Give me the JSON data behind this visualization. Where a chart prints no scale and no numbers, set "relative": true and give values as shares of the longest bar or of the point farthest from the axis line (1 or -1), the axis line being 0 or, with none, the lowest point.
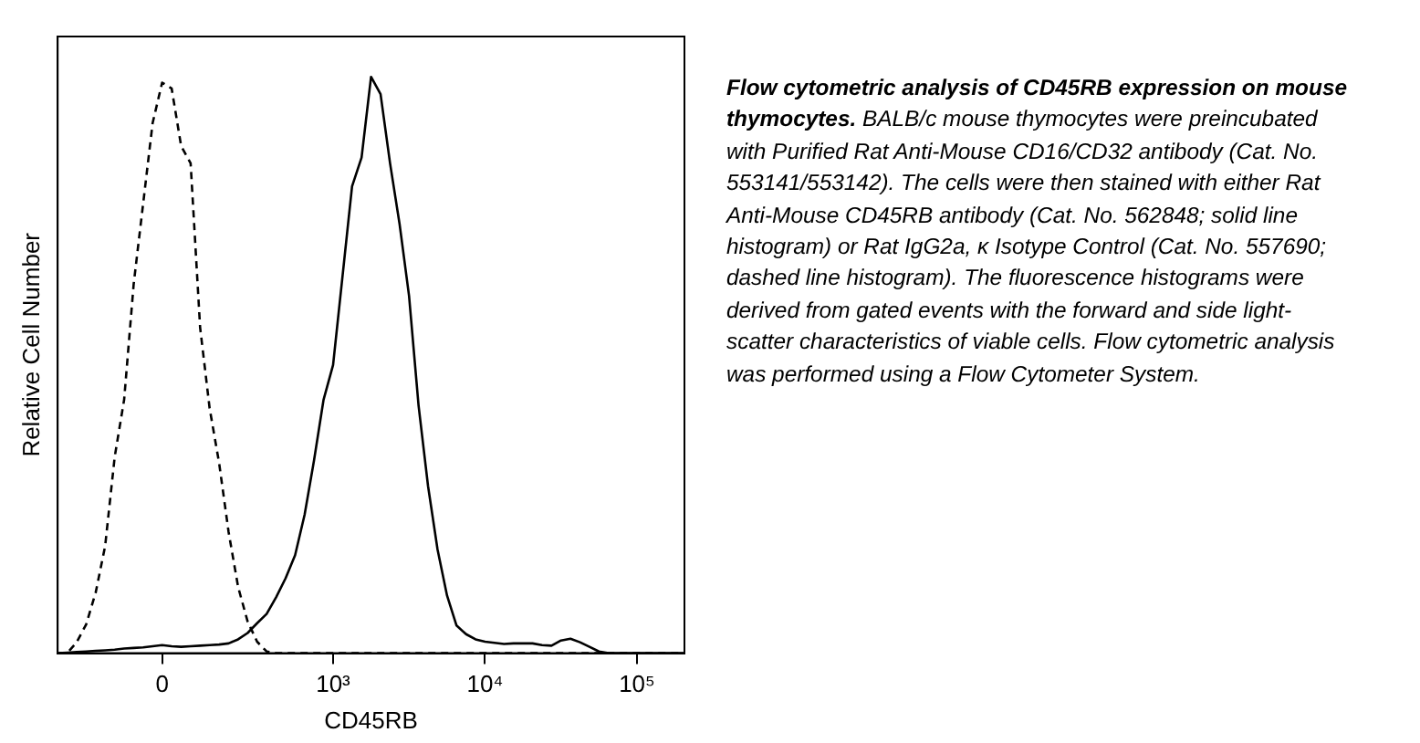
{
  "chart_data": {
    "type": "line",
    "title": "Flow cytometric analysis of CD45RB expression on mouse thymocytes.",
    "xlabel": "CD45RB",
    "ylabel": "Relative Cell Number",
    "annotations": [
      "BALB/c mouse thymocytes were preincubated with Purified Rat Anti-Mouse CD16/CD32 antibody (Cat. No. 553141/553142). The cells were then stained with either Rat Anti-Mouse CD45RB antibody (Cat. No. 562848; solid line histogram) or Rat IgG2a, κ Isotype Control (Cat. No. 557690; dashed line histogram). The fluorescence histograms were derived from gated events with the forward and side light-scatter characteristics of viable cells. Flow cytometric analysis was performed using a Flow Cytometer System."
    ],
    "relative": true,
    "marker": "none",
    "categories": [
      null,
      null,
      null,
      null,
      null,
      null,
      null,
      null,
      null,
      null,
      null,
      "0",
      null,
      null,
      null,
      null,
      null,
      null,
      null,
      null,
      null,
      null,
      null,
      null,
      null,
      null,
      null,
      null,
      null,
      "10³",
      null,
      null,
      null,
      null,
      null,
      null,
      null,
      null,
      null,
      null,
      null,
      null,
      null,
      null,
      null,
      "10⁴",
      null,
      null,
      null,
      null,
      null,
      null,
      null,
      null,
      null,
      null,
      null,
      null,
      null,
      null,
      null,
      "10⁵",
      null,
      null,
      null,
      null,
      null
    ],
    "series": [
      {
        "color": "#000000",
        "line_style": "solid",
        "values": [
          0,
          0.001,
          0.002,
          0.003,
          0.004,
          0.005,
          0.006,
          0.008,
          0.009,
          0.01,
          0.012,
          0.014,
          0.012,
          0.011,
          0.012,
          0.013,
          0.014,
          0.015,
          0.017,
          0.024,
          0.035,
          0.052,
          0.068,
          0.097,
          0.13,
          0.17,
          0.24,
          0.335,
          0.44,
          0.5,
          0.655,
          0.81,
          0.86,
          1.0,
          0.97,
          0.85,
          0.745,
          0.62,
          0.43,
          0.29,
          0.18,
          0.1,
          0.048,
          0.033,
          0.024,
          0.02,
          0.018,
          0.016,
          0.017,
          0.017,
          0.017,
          0.014,
          0.013,
          0.022,
          0.025,
          0.019,
          0.011,
          0.003,
          0,
          0,
          0,
          0,
          0,
          0,
          0,
          0,
          0
        ]
      },
      {
        "color": "#000000",
        "line_style": "dashed",
        "values": [
          0,
          0,
          0.019,
          0.05,
          0.105,
          0.186,
          0.34,
          0.44,
          0.64,
          0.78,
          0.92,
          0.99,
          0.98,
          0.88,
          0.85,
          0.565,
          0.425,
          0.33,
          0.21,
          0.115,
          0.055,
          0.02,
          0.003,
          0,
          0,
          0,
          0,
          0,
          0,
          0,
          0,
          0,
          0,
          0,
          0,
          0,
          0,
          0,
          0,
          0,
          0,
          0,
          0,
          0,
          0,
          0,
          0,
          0,
          0,
          0,
          0,
          0,
          0,
          0,
          0,
          0,
          0,
          0,
          0,
          0,
          0,
          0,
          0,
          0,
          0,
          0,
          0
        ]
      }
    ]
  }
}
